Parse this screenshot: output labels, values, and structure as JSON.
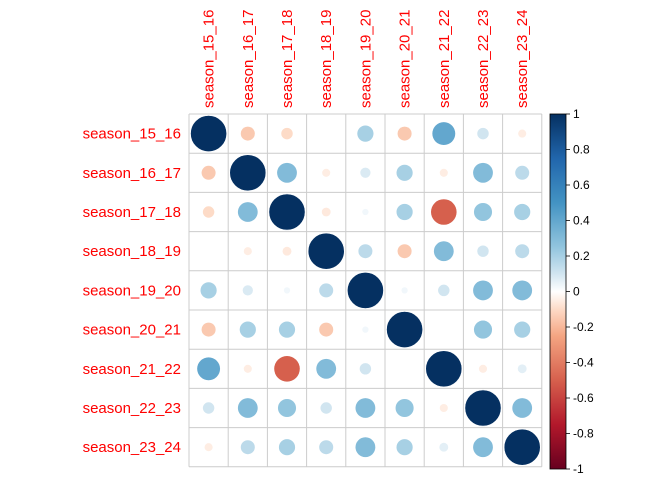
{
  "chart_data": {
    "type": "heatmap",
    "style": "corrplot-circle",
    "title": "",
    "variables": [
      "season_15_16",
      "season_16_17",
      "season_17_18",
      "season_18_19",
      "season_19_20",
      "season_20_21",
      "season_21_22",
      "season_22_23",
      "season_23_24"
    ],
    "matrix": [
      [
        1.0,
        -0.15,
        -0.1,
        0.0,
        0.2,
        -0.15,
        0.4,
        0.1,
        -0.05
      ],
      [
        -0.15,
        1.0,
        0.3,
        -0.05,
        0.08,
        0.2,
        -0.05,
        0.3,
        0.15
      ],
      [
        -0.1,
        0.3,
        1.0,
        -0.06,
        0.03,
        0.2,
        -0.5,
        0.25,
        0.2
      ],
      [
        0.0,
        -0.05,
        -0.06,
        1.0,
        0.15,
        -0.15,
        0.3,
        0.1,
        0.15
      ],
      [
        0.2,
        0.08,
        0.03,
        0.15,
        1.0,
        0.03,
        0.1,
        0.3,
        0.3
      ],
      [
        -0.15,
        0.2,
        0.2,
        -0.15,
        0.03,
        1.0,
        0.0,
        0.25,
        0.2
      ],
      [
        0.4,
        -0.05,
        -0.5,
        0.3,
        0.1,
        0.0,
        1.0,
        -0.05,
        0.06
      ],
      [
        0.1,
        0.3,
        0.25,
        0.1,
        0.3,
        0.25,
        -0.05,
        1.0,
        0.3
      ],
      [
        -0.05,
        0.15,
        0.2,
        0.15,
        0.3,
        0.2,
        0.06,
        0.3,
        1.0
      ]
    ],
    "colorbar": {
      "range": [
        -1,
        1
      ],
      "ticks": [
        1,
        0.8,
        0.6,
        0.4,
        0.2,
        0,
        -0.2,
        -0.4,
        -0.6,
        -0.8,
        -1
      ],
      "tick_labels": [
        "1",
        "0.8",
        "0.6",
        "0.4",
        "0.2",
        "0",
        "-0.2",
        "-0.4",
        "-0.6",
        "-0.8",
        "-1"
      ],
      "stops": [
        {
          "value": -1.0,
          "color": "#67001f"
        },
        {
          "value": -0.75,
          "color": "#b2182b"
        },
        {
          "value": -0.5,
          "color": "#d6604d"
        },
        {
          "value": -0.25,
          "color": "#f4a582"
        },
        {
          "value": -0.1,
          "color": "#fddbc7"
        },
        {
          "value": 0.0,
          "color": "#ffffff"
        },
        {
          "value": 0.1,
          "color": "#d1e5f0"
        },
        {
          "value": 0.25,
          "color": "#92c5de"
        },
        {
          "value": 0.5,
          "color": "#4393c3"
        },
        {
          "value": 0.75,
          "color": "#2166ac"
        },
        {
          "value": 1.0,
          "color": "#053061"
        }
      ]
    },
    "label_color": "#ff0000",
    "grid": true,
    "legend_position": "right"
  }
}
